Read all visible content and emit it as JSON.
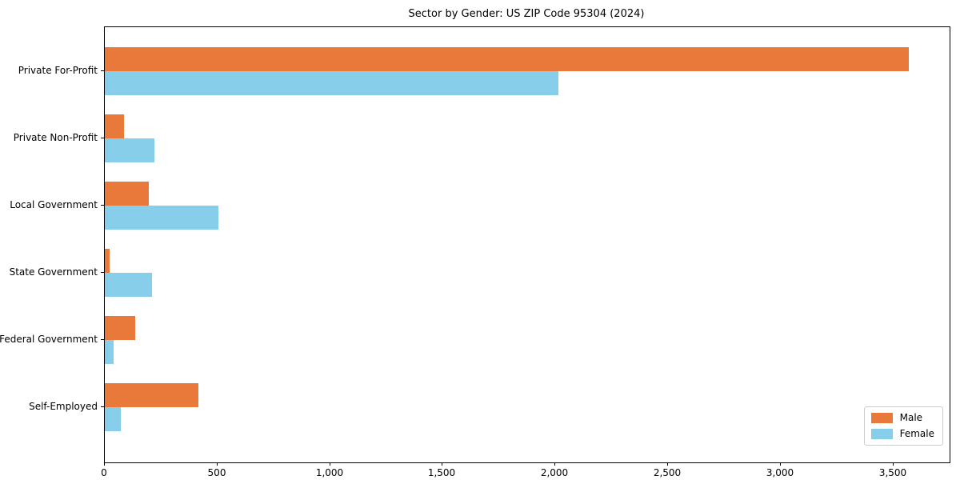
{
  "figure": {
    "title": "Sector by Gender: US ZIP Code 95304 (2024)"
  },
  "chart_data": {
    "type": "bar",
    "orientation": "horizontal",
    "title": "Sector by Gender: US ZIP Code 95304 (2024)",
    "categories": [
      "Private For-Profit",
      "Private Non-Profit",
      "Local Government",
      "State Government",
      "Federal Government",
      "Self-Employed"
    ],
    "series": [
      {
        "name": "Male",
        "color": "#e8793a",
        "values": [
          3570,
          85,
          195,
          20,
          135,
          415
        ]
      },
      {
        "name": "Female",
        "color": "#87ceeb",
        "values": [
          2015,
          220,
          505,
          210,
          40,
          70
        ]
      }
    ],
    "xlabel": "",
    "ylabel": "",
    "xlim": [
      0,
      3750
    ],
    "xticks": [
      0,
      500,
      1000,
      1500,
      2000,
      2500,
      3000,
      3500
    ],
    "grid": false,
    "legend_position": "lower right",
    "background_color": "#ffffff",
    "axis_color": "#000000"
  }
}
